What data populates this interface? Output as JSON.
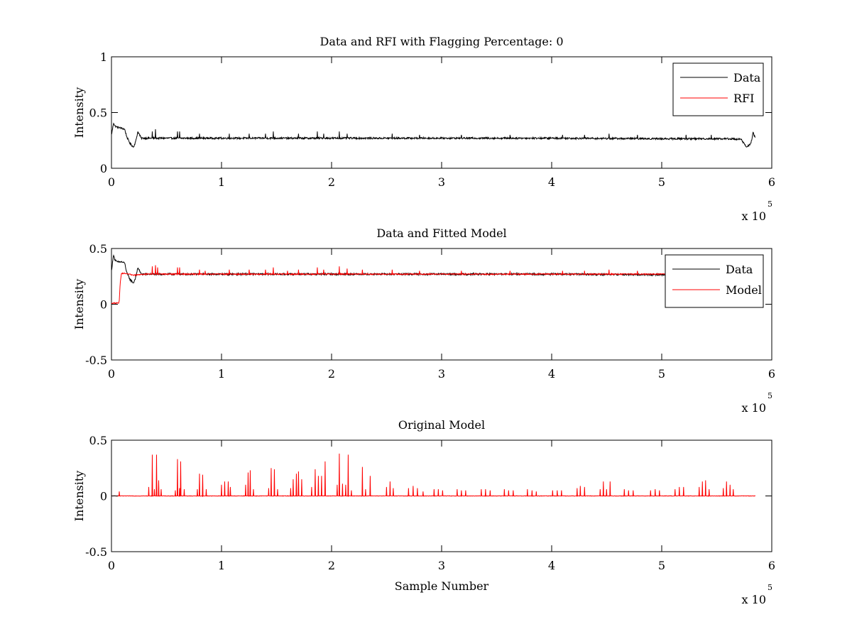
{
  "figure": {
    "background": "#ffffff",
    "colors": {
      "data": "#000000",
      "rfi": "#ff0000",
      "model": "#ff0000"
    }
  },
  "chart_data": [
    {
      "type": "line",
      "title": "Data and RFI with Flagging Percentage: 0",
      "xlabel": "",
      "ylabel": "Intensity",
      "xlim": [
        0,
        600000
      ],
      "ylim": [
        0,
        1
      ],
      "xticks": [
        0,
        1,
        2,
        3,
        4,
        5,
        6
      ],
      "yticks": [
        0,
        0.5,
        1
      ],
      "x_exponent": {
        "base": "x 10",
        "power": "5"
      },
      "legend": {
        "position": "top-right",
        "entries": [
          "Data",
          "RFI"
        ]
      },
      "series": [
        {
          "name": "Data",
          "color": "#000000",
          "x": [
            0,
            2000,
            3000,
            5000,
            9000,
            12000,
            14000,
            17000,
            20000,
            22000,
            24000,
            27000,
            50000,
            100000,
            200000,
            300000,
            400000,
            500000,
            560000,
            572000,
            577000,
            581000,
            583000,
            585000
          ],
          "y": [
            0.3,
            0.41,
            0.38,
            0.37,
            0.36,
            0.35,
            0.28,
            0.22,
            0.19,
            0.24,
            0.33,
            0.27,
            0.27,
            0.27,
            0.27,
            0.27,
            0.27,
            0.265,
            0.265,
            0.26,
            0.19,
            0.22,
            0.32,
            0.27
          ],
          "noise": 0.008,
          "spikes": [
            {
              "x": 37000,
              "y": 0.33
            },
            {
              "x": 40000,
              "y": 0.35
            },
            {
              "x": 60000,
              "y": 0.33
            },
            {
              "x": 62000,
              "y": 0.33
            },
            {
              "x": 80000,
              "y": 0.31
            },
            {
              "x": 107000,
              "y": 0.31
            },
            {
              "x": 125000,
              "y": 0.31
            },
            {
              "x": 140000,
              "y": 0.31
            },
            {
              "x": 147000,
              "y": 0.33
            },
            {
              "x": 170000,
              "y": 0.31
            },
            {
              "x": 187000,
              "y": 0.33
            },
            {
              "x": 193000,
              "y": 0.31
            },
            {
              "x": 207000,
              "y": 0.33
            },
            {
              "x": 214000,
              "y": 0.31
            },
            {
              "x": 255000,
              "y": 0.31
            },
            {
              "x": 280000,
              "y": 0.3
            },
            {
              "x": 318000,
              "y": 0.3
            },
            {
              "x": 362000,
              "y": 0.3
            },
            {
              "x": 410000,
              "y": 0.3
            },
            {
              "x": 430000,
              "y": 0.3
            },
            {
              "x": 452000,
              "y": 0.31
            },
            {
              "x": 478000,
              "y": 0.3
            },
            {
              "x": 522000,
              "y": 0.3
            },
            {
              "x": 545000,
              "y": 0.3
            }
          ]
        },
        {
          "name": "RFI",
          "color": "#ff0000",
          "x": [],
          "y": []
        }
      ]
    },
    {
      "type": "line",
      "title": "Data and Fitted Model",
      "xlabel": "",
      "ylabel": "Intensity",
      "xlim": [
        0,
        600000
      ],
      "ylim": [
        -0.5,
        0.5
      ],
      "xticks": [
        0,
        1,
        2,
        3,
        4,
        5,
        6
      ],
      "yticks": [
        -0.5,
        0,
        0.5
      ],
      "x_exponent": {
        "base": "x 10",
        "power": "5"
      },
      "legend": {
        "position": "top-right",
        "entries": [
          "Data",
          "Model"
        ]
      },
      "series": [
        {
          "name": "Data",
          "color": "#000000",
          "x": [
            0,
            2000,
            3000,
            5000,
            9000,
            12000,
            14000,
            17000,
            20000,
            22000,
            24000,
            27000,
            50000,
            100000,
            200000,
            300000,
            400000,
            500000,
            505000
          ],
          "y": [
            0.3,
            0.45,
            0.4,
            0.38,
            0.38,
            0.37,
            0.28,
            0.22,
            0.19,
            0.24,
            0.33,
            0.27,
            0.27,
            0.27,
            0.27,
            0.27,
            0.27,
            0.265,
            0.265
          ],
          "noise": 0.008,
          "spikes": []
        },
        {
          "name": "Model",
          "color": "#ff0000",
          "x": [
            0,
            6500,
            7000,
            8000,
            9000,
            10000,
            14000,
            16000,
            20000,
            30000,
            100000,
            200000,
            300000,
            400000,
            500000,
            505000
          ],
          "y": [
            0.01,
            0.01,
            0.02,
            0.2,
            0.27,
            0.28,
            0.27,
            0.27,
            0.26,
            0.27,
            0.27,
            0.27,
            0.27,
            0.27,
            0.27,
            0.27
          ],
          "noise": 0.005,
          "spikes": [
            {
              "x": 37000,
              "y": 0.34
            },
            {
              "x": 40000,
              "y": 0.35
            },
            {
              "x": 42000,
              "y": 0.33
            },
            {
              "x": 60000,
              "y": 0.33
            },
            {
              "x": 62000,
              "y": 0.33
            },
            {
              "x": 80000,
              "y": 0.31
            },
            {
              "x": 85000,
              "y": 0.3
            },
            {
              "x": 107000,
              "y": 0.31
            },
            {
              "x": 125000,
              "y": 0.31
            },
            {
              "x": 140000,
              "y": 0.31
            },
            {
              "x": 147000,
              "y": 0.33
            },
            {
              "x": 160000,
              "y": 0.3
            },
            {
              "x": 170000,
              "y": 0.31
            },
            {
              "x": 187000,
              "y": 0.33
            },
            {
              "x": 193000,
              "y": 0.31
            },
            {
              "x": 207000,
              "y": 0.34
            },
            {
              "x": 214000,
              "y": 0.32
            },
            {
              "x": 228000,
              "y": 0.31
            },
            {
              "x": 255000,
              "y": 0.31
            },
            {
              "x": 280000,
              "y": 0.3
            },
            {
              "x": 318000,
              "y": 0.3
            },
            {
              "x": 362000,
              "y": 0.3
            },
            {
              "x": 410000,
              "y": 0.3
            },
            {
              "x": 430000,
              "y": 0.3
            },
            {
              "x": 452000,
              "y": 0.31
            },
            {
              "x": 478000,
              "y": 0.3
            }
          ]
        }
      ]
    },
    {
      "type": "line",
      "title": "Original Model",
      "xlabel": "Sample Number",
      "ylabel": "Intensity",
      "xlim": [
        0,
        600000
      ],
      "ylim": [
        -0.5,
        0.5
      ],
      "xticks": [
        0,
        1,
        2,
        3,
        4,
        5,
        6
      ],
      "yticks": [
        -0.5,
        0,
        0.5
      ],
      "x_exponent": {
        "base": "x 10",
        "power": "5"
      },
      "legend": null,
      "series": [
        {
          "name": "Model",
          "color": "#ff0000",
          "x": [
            0,
            585000
          ],
          "y": [
            0,
            0
          ],
          "noise": 0.002,
          "spikes": [
            {
              "x": 7000,
              "y": 0.04
            },
            {
              "x": 34000,
              "y": 0.08
            },
            {
              "x": 37000,
              "y": 0.37
            },
            {
              "x": 39000,
              "y": 0.06
            },
            {
              "x": 41000,
              "y": 0.37
            },
            {
              "x": 43000,
              "y": 0.14
            },
            {
              "x": 45000,
              "y": 0.06
            },
            {
              "x": 58000,
              "y": 0.05
            },
            {
              "x": 60000,
              "y": 0.33
            },
            {
              "x": 62000,
              "y": 0.07
            },
            {
              "x": 63000,
              "y": 0.31
            },
            {
              "x": 66000,
              "y": 0.06
            },
            {
              "x": 78000,
              "y": 0.06
            },
            {
              "x": 80000,
              "y": 0.2
            },
            {
              "x": 83000,
              "y": 0.19
            },
            {
              "x": 86000,
              "y": 0.06
            },
            {
              "x": 100000,
              "y": 0.1
            },
            {
              "x": 103000,
              "y": 0.13
            },
            {
              "x": 106000,
              "y": 0.13
            },
            {
              "x": 108000,
              "y": 0.08
            },
            {
              "x": 122000,
              "y": 0.1
            },
            {
              "x": 124000,
              "y": 0.21
            },
            {
              "x": 126000,
              "y": 0.23
            },
            {
              "x": 129000,
              "y": 0.06
            },
            {
              "x": 143000,
              "y": 0.07
            },
            {
              "x": 145000,
              "y": 0.25
            },
            {
              "x": 148000,
              "y": 0.24
            },
            {
              "x": 151000,
              "y": 0.06
            },
            {
              "x": 163000,
              "y": 0.07
            },
            {
              "x": 165000,
              "y": 0.15
            },
            {
              "x": 168000,
              "y": 0.2
            },
            {
              "x": 170000,
              "y": 0.22
            },
            {
              "x": 173000,
              "y": 0.15
            },
            {
              "x": 182000,
              "y": 0.08
            },
            {
              "x": 185000,
              "y": 0.24
            },
            {
              "x": 188000,
              "y": 0.18
            },
            {
              "x": 191000,
              "y": 0.18
            },
            {
              "x": 194000,
              "y": 0.31
            },
            {
              "x": 205000,
              "y": 0.1
            },
            {
              "x": 207000,
              "y": 0.38
            },
            {
              "x": 210000,
              "y": 0.11
            },
            {
              "x": 213000,
              "y": 0.1
            },
            {
              "x": 215000,
              "y": 0.37
            },
            {
              "x": 218000,
              "y": 0.05
            },
            {
              "x": 228000,
              "y": 0.26
            },
            {
              "x": 231000,
              "y": 0.06
            },
            {
              "x": 235000,
              "y": 0.18
            },
            {
              "x": 250000,
              "y": 0.08
            },
            {
              "x": 253000,
              "y": 0.13
            },
            {
              "x": 256000,
              "y": 0.07
            },
            {
              "x": 270000,
              "y": 0.07
            },
            {
              "x": 274000,
              "y": 0.09
            },
            {
              "x": 278000,
              "y": 0.07
            },
            {
              "x": 283000,
              "y": 0.04
            },
            {
              "x": 293000,
              "y": 0.06
            },
            {
              "x": 297000,
              "y": 0.06
            },
            {
              "x": 301000,
              "y": 0.05
            },
            {
              "x": 314000,
              "y": 0.06
            },
            {
              "x": 318000,
              "y": 0.05
            },
            {
              "x": 322000,
              "y": 0.05
            },
            {
              "x": 336000,
              "y": 0.06
            },
            {
              "x": 340000,
              "y": 0.06
            },
            {
              "x": 344000,
              "y": 0.05
            },
            {
              "x": 357000,
              "y": 0.06
            },
            {
              "x": 361000,
              "y": 0.05
            },
            {
              "x": 365000,
              "y": 0.05
            },
            {
              "x": 378000,
              "y": 0.06
            },
            {
              "x": 382000,
              "y": 0.05
            },
            {
              "x": 386000,
              "y": 0.04
            },
            {
              "x": 401000,
              "y": 0.05
            },
            {
              "x": 405000,
              "y": 0.05
            },
            {
              "x": 409000,
              "y": 0.05
            },
            {
              "x": 423000,
              "y": 0.07
            },
            {
              "x": 426000,
              "y": 0.09
            },
            {
              "x": 430000,
              "y": 0.08
            },
            {
              "x": 444000,
              "y": 0.06
            },
            {
              "x": 447000,
              "y": 0.13
            },
            {
              "x": 450000,
              "y": 0.06
            },
            {
              "x": 453000,
              "y": 0.13
            },
            {
              "x": 466000,
              "y": 0.06
            },
            {
              "x": 470000,
              "y": 0.05
            },
            {
              "x": 474000,
              "y": 0.05
            },
            {
              "x": 490000,
              "y": 0.05
            },
            {
              "x": 494000,
              "y": 0.06
            },
            {
              "x": 498000,
              "y": 0.05
            },
            {
              "x": 512000,
              "y": 0.06
            },
            {
              "x": 516000,
              "y": 0.08
            },
            {
              "x": 520000,
              "y": 0.08
            },
            {
              "x": 534000,
              "y": 0.08
            },
            {
              "x": 537000,
              "y": 0.13
            },
            {
              "x": 540000,
              "y": 0.14
            },
            {
              "x": 543000,
              "y": 0.06
            },
            {
              "x": 556000,
              "y": 0.07
            },
            {
              "x": 559000,
              "y": 0.13
            },
            {
              "x": 562000,
              "y": 0.1
            },
            {
              "x": 565000,
              "y": 0.06
            }
          ]
        }
      ]
    }
  ]
}
